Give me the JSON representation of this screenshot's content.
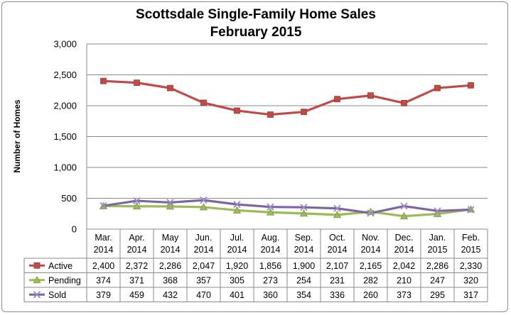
{
  "chart_data": {
    "type": "line",
    "title": "Scottsdale Single-Family Home Sales",
    "subtitle": "February 2015",
    "ylabel": "Number of Homes",
    "ylim": [
      0,
      3000
    ],
    "yticks": [
      "0",
      "500",
      "1,000",
      "1,500",
      "2,000",
      "2,500",
      "3,000"
    ],
    "ytick_values": [
      0,
      500,
      1000,
      1500,
      2000,
      2500,
      3000
    ],
    "grid": true,
    "legend": "data-table",
    "categories": [
      [
        "Mar.",
        "2014"
      ],
      [
        "Apr.",
        "2014"
      ],
      [
        "May",
        "2014"
      ],
      [
        "Jun.",
        "2014"
      ],
      [
        "Jul.",
        "2014"
      ],
      [
        "Aug.",
        "2014"
      ],
      [
        "Sep.",
        "2014"
      ],
      [
        "Oct.",
        "2014"
      ],
      [
        "Nov.",
        "2014"
      ],
      [
        "Dec.",
        "2014"
      ],
      [
        "Jan.",
        "2015"
      ],
      [
        "Feb.",
        "2015"
      ]
    ],
    "series": [
      {
        "name": "Active",
        "color": "#be4b48",
        "marker": "square",
        "values": [
          2400,
          2372,
          2286,
          2047,
          1920,
          1856,
          1900,
          2107,
          2165,
          2042,
          2286,
          2330
        ],
        "labels": [
          "2,400",
          "2,372",
          "2,286",
          "2,047",
          "1,920",
          "1,856",
          "1,900",
          "2,107",
          "2,165",
          "2,042",
          "2,286",
          "2,330"
        ]
      },
      {
        "name": "Pending",
        "color": "#9bbb59",
        "marker": "triangle",
        "values": [
          374,
          371,
          368,
          357,
          305,
          273,
          254,
          231,
          282,
          210,
          247,
          320
        ],
        "labels": [
          "374",
          "371",
          "368",
          "357",
          "305",
          "273",
          "254",
          "231",
          "282",
          "210",
          "247",
          "320"
        ]
      },
      {
        "name": "Sold",
        "color": "#8064a2",
        "marker": "x",
        "values": [
          379,
          459,
          432,
          470,
          401,
          360,
          354,
          336,
          260,
          373,
          295,
          317
        ],
        "labels": [
          "379",
          "459",
          "432",
          "470",
          "401",
          "360",
          "354",
          "336",
          "260",
          "373",
          "295",
          "317"
        ]
      }
    ]
  }
}
